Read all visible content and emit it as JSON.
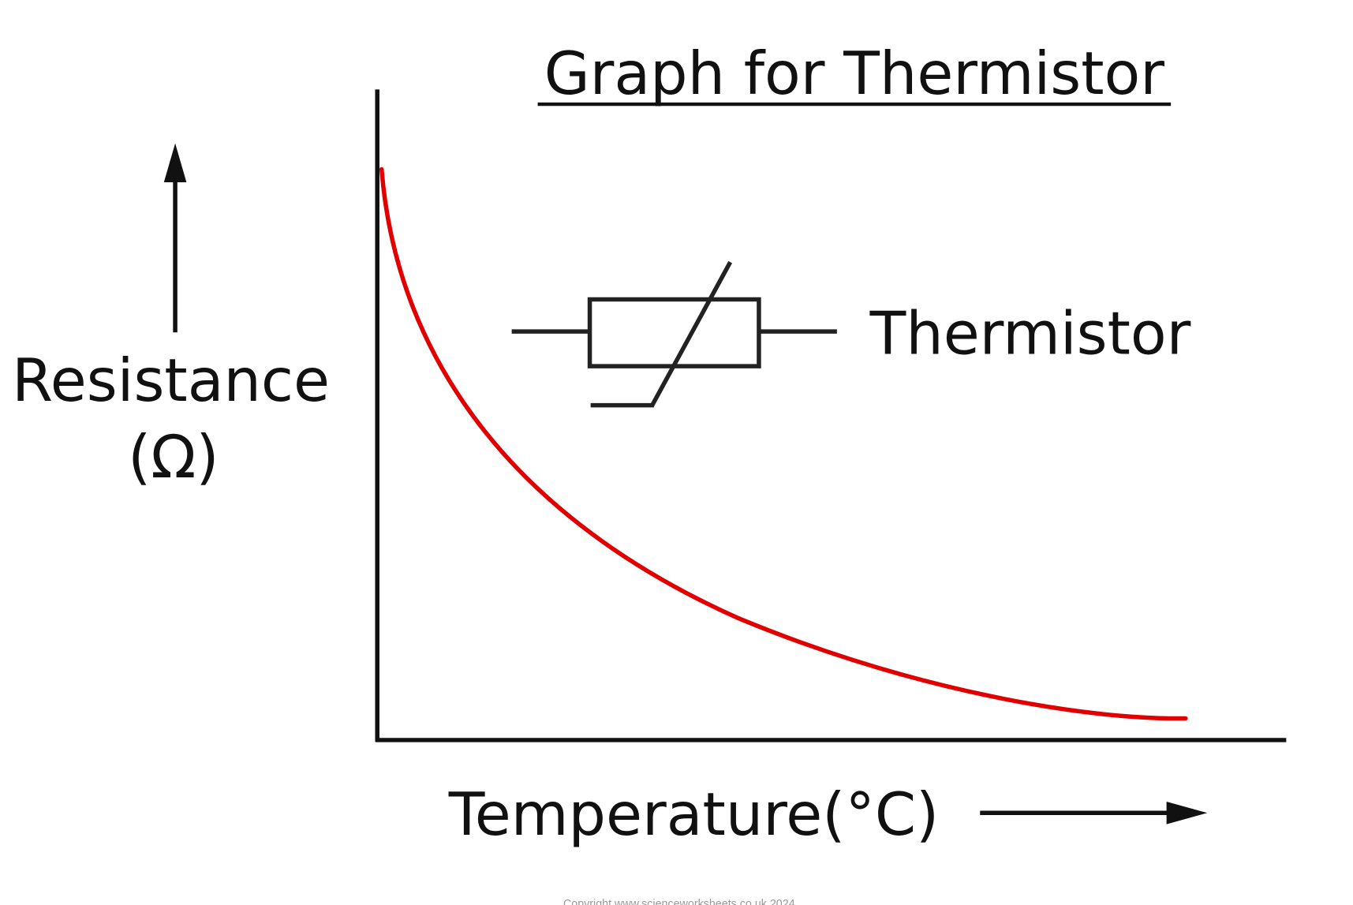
{
  "title": "Graph for Thermistor",
  "y_axis_label": {
    "line1": "Resistance",
    "line2": "(Ω)"
  },
  "x_axis_label": "Temperature(°C)",
  "symbol_label": "Thermistor",
  "copyright": "Copyright www.scienceworksheets.co.uk 2024"
}
